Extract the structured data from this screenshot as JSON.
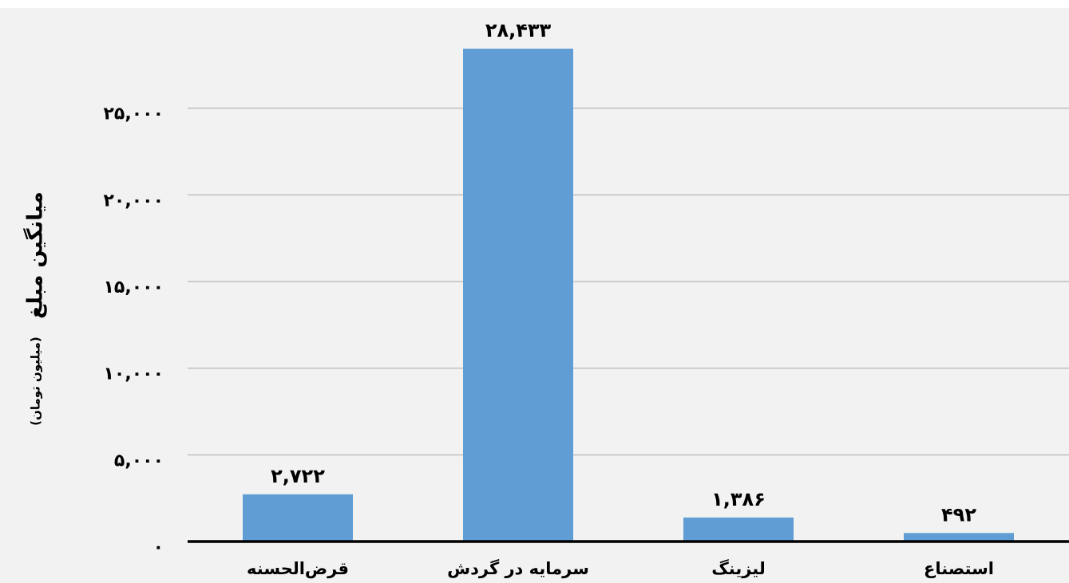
{
  "chart_data": {
    "type": "bar",
    "y_label": "میانگین مبلغ",
    "y_label_unit": "(میلیون تومان)",
    "categories": [
      "قرض‌الحسنه",
      "سرمایه در گردش",
      "لیزینگ",
      "استصناع"
    ],
    "values": [
      2722,
      28433,
      1386,
      492
    ],
    "value_labels": [
      "۲,۷۲۲",
      "۲۸,۴۳۳",
      "۱,۳۸۶",
      "۴۹۲"
    ],
    "color": "#5f9dd4",
    "ylim": [
      0,
      30000
    ],
    "yticks": [
      {
        "value": 0,
        "label": "۰"
      },
      {
        "value": 5000,
        "label": "۵,۰۰۰"
      },
      {
        "value": 10000,
        "label": "۱۰,۰۰۰"
      },
      {
        "value": 15000,
        "label": "۱۵,۰۰۰"
      },
      {
        "value": 20000,
        "label": "۲۰,۰۰۰"
      },
      {
        "value": 25000,
        "label": "۲۵,۰۰۰"
      }
    ],
    "grid": true
  }
}
